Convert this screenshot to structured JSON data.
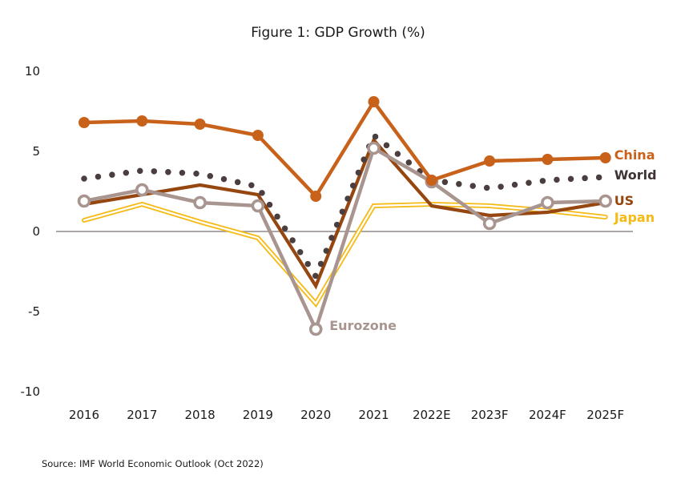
{
  "chart_data": {
    "type": "line",
    "title": "Figure 1: GDP Growth (%)",
    "xlabel": "",
    "ylabel": "",
    "ylim": [
      -10,
      10
    ],
    "yticks": [
      "10",
      "5",
      "0",
      "-5",
      "-10"
    ],
    "ytick_values": [
      10,
      5,
      0,
      -5,
      -10
    ],
    "categories": [
      "2016",
      "2017",
      "2018",
      "2019",
      "2020",
      "2021",
      "2022E",
      "2023F",
      "2024F",
      "2025F"
    ],
    "grid": false,
    "zero_line": true,
    "series": [
      {
        "name": "China",
        "style": "solid-with-filled-markers",
        "color": "#C8621B",
        "values": [
          6.8,
          6.9,
          6.7,
          6.0,
          2.2,
          8.1,
          3.2,
          4.4,
          4.5,
          4.6
        ]
      },
      {
        "name": "World",
        "style": "dotted",
        "color": "#4A3E3E",
        "values": [
          3.3,
          3.8,
          3.6,
          2.8,
          -2.8,
          6.0,
          3.2,
          2.7,
          3.2,
          3.4
        ]
      },
      {
        "name": "US",
        "style": "solid",
        "color": "#96460F",
        "values": [
          1.7,
          2.3,
          2.9,
          2.3,
          -3.4,
          5.7,
          1.6,
          1.0,
          1.2,
          1.8
        ]
      },
      {
        "name": "Japan",
        "style": "double-line",
        "color": "#F5BA14",
        "values": [
          0.7,
          1.7,
          0.6,
          -0.4,
          -4.5,
          1.6,
          1.7,
          1.6,
          1.3,
          0.9
        ]
      },
      {
        "name": "Eurozone",
        "style": "solid-with-hollow-markers",
        "color": "#A9958F",
        "values": [
          1.9,
          2.6,
          1.8,
          1.6,
          -6.1,
          5.2,
          3.1,
          0.5,
          1.8,
          1.9
        ]
      }
    ],
    "legend": "inline-right-end-labels",
    "annotations": [
      {
        "text": "Eurozone",
        "series": "Eurozone",
        "at": "2020"
      }
    ],
    "source": "Source: IMF World Economic Outlook (Oct 2022)"
  }
}
